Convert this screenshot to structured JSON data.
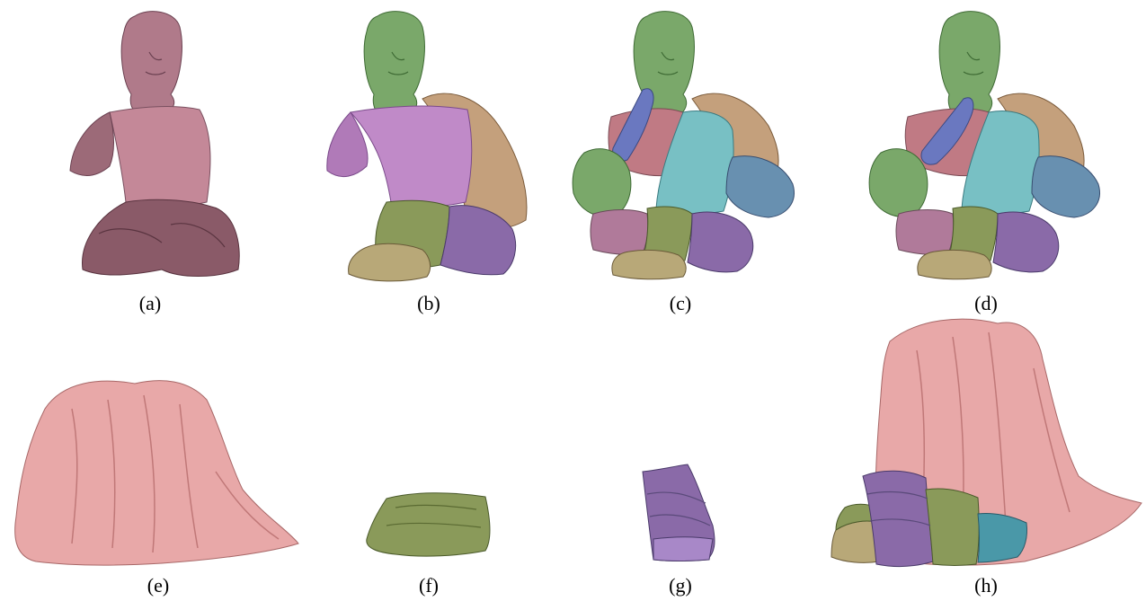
{
  "figure": {
    "panels": [
      {
        "id": "a",
        "label": "(a)"
      },
      {
        "id": "b",
        "label": "(b)"
      },
      {
        "id": "c",
        "label": "(c)"
      },
      {
        "id": "d",
        "label": "(d)"
      },
      {
        "id": "e",
        "label": "(e)"
      },
      {
        "id": "f",
        "label": "(f)"
      },
      {
        "id": "g",
        "label": "(g)"
      },
      {
        "id": "h",
        "label": "(h)"
      }
    ]
  },
  "colors": {
    "mauve": "#9c6a78",
    "mauve_head": "#b07a8a",
    "green": "#7aa86a",
    "lilac": "#c08ac8",
    "tan": "#c4a07c",
    "olive": "#8a9a5a",
    "purple": "#8a6aa8",
    "khaki": "#b8a878",
    "pink": "#e8a8a8",
    "blue_hand": "#6a78c0",
    "cyan": "#78c0c4",
    "steel": "#6890b0",
    "rose": "#c07a84",
    "teal": "#4a98a8"
  }
}
